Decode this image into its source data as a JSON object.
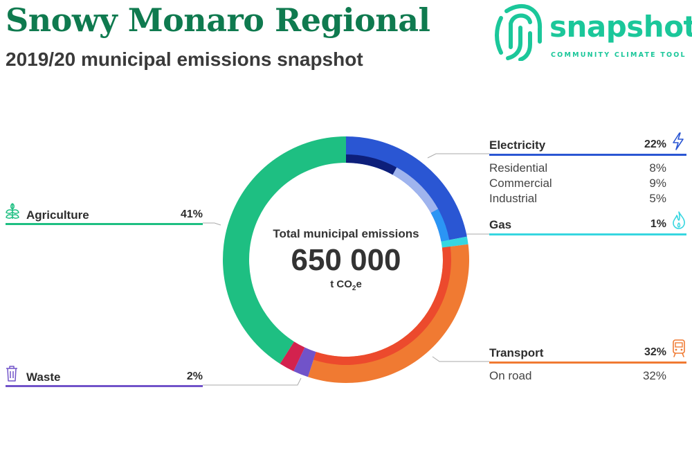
{
  "header": {
    "title": "Snowy Monaro Regional",
    "subtitle": "2019/20 municipal emissions snapshot"
  },
  "brand": {
    "name": "snapshot",
    "tagline": "COMMUNITY CLIMATE TOOL",
    "color": "#1bc79a"
  },
  "center": {
    "label": "Total municipal emissions",
    "value": "650 000",
    "unit_main": "t CO",
    "unit_sub": "2",
    "unit_tail": "e"
  },
  "categories": {
    "electricity": {
      "name": "Electricity",
      "pct": "22%",
      "color": "#2a56d3",
      "icon": "lightning-icon",
      "subs": [
        {
          "name": "Residential",
          "pct": "8%"
        },
        {
          "name": "Commercial",
          "pct": "9%"
        },
        {
          "name": "Industrial",
          "pct": "5%"
        }
      ]
    },
    "gas": {
      "name": "Gas",
      "pct": "1%",
      "color": "#36d6e0",
      "icon": "flame-icon"
    },
    "transport": {
      "name": "Transport",
      "pct": "32%",
      "color": "#f07a32",
      "icon": "train-icon",
      "subs": [
        {
          "name": "On road",
          "pct": "32%"
        }
      ]
    },
    "waste": {
      "name": "Waste",
      "pct": "2%",
      "color": "#7153c9",
      "icon": "trash-icon"
    },
    "agriculture": {
      "name": "Agriculture",
      "pct": "41%",
      "color": "#1ebf82",
      "icon": "sprout-icon"
    }
  },
  "chart_data": {
    "type": "pie",
    "title": "Total municipal emissions",
    "total": "650 000",
    "unit": "t CO2e",
    "outer_ring": [
      {
        "name": "Electricity",
        "value": 22,
        "color": "#2a56d3"
      },
      {
        "name": "Gas",
        "value": 1,
        "color": "#36d6e0"
      },
      {
        "name": "Transport",
        "value": 32,
        "color": "#f07a32"
      },
      {
        "name": "Waste",
        "value": 2,
        "color": "#7153c9"
      },
      {
        "name": "Unlabelled",
        "value": 2,
        "color": "#d3224e"
      },
      {
        "name": "Agriculture",
        "value": 41,
        "color": "#1ebf82"
      }
    ],
    "inner_ring": [
      {
        "name": "Residential",
        "value": 8,
        "color": "#0d1f7a"
      },
      {
        "name": "Commercial",
        "value": 9,
        "color": "#9fb4ee"
      },
      {
        "name": "Industrial",
        "value": 5,
        "color": "#2b95f4"
      },
      {
        "name": "Gas",
        "value": 1,
        "color": "#36d6e0"
      },
      {
        "name": "On road",
        "value": 32,
        "color": "#ec4a2d"
      }
    ]
  }
}
